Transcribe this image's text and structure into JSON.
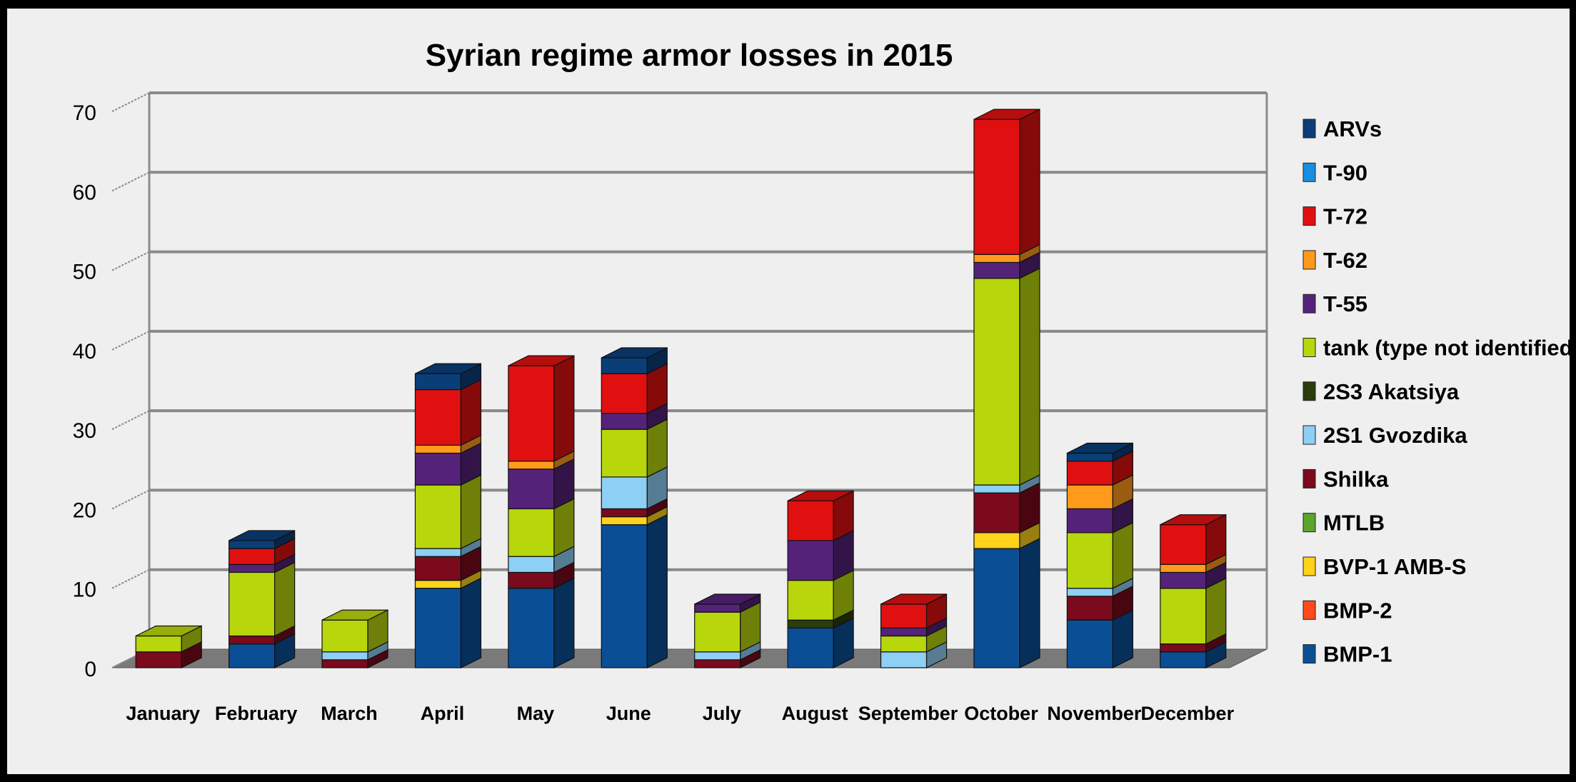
{
  "chart_data": {
    "type": "bar",
    "stacked": true,
    "three_d": true,
    "title": "Syrian regime armor losses in 2015",
    "xlabel": "",
    "ylabel": "",
    "ylim": [
      0,
      70
    ],
    "yticks": [
      "0",
      "10",
      "20",
      "30",
      "40",
      "50",
      "60",
      "70"
    ],
    "grid": true,
    "legend_position": "right",
    "categories": [
      "January",
      "February",
      "March",
      "April",
      "May",
      "June",
      "July",
      "August",
      "September",
      "October",
      "November",
      "December"
    ],
    "series": [
      {
        "name": "BMP-1",
        "color": "#0a4f96",
        "values": [
          0,
          3,
          0,
          10,
          10,
          18,
          0,
          5,
          0,
          15,
          6,
          2
        ]
      },
      {
        "name": "BMP-2",
        "color": "#ff4a1c",
        "values": [
          0,
          0,
          0,
          0,
          0,
          0,
          0,
          0,
          0,
          0,
          0,
          0
        ]
      },
      {
        "name": "BVP-1 AMB-S",
        "color": "#ffd21c",
        "values": [
          0,
          0,
          0,
          1,
          0,
          1,
          0,
          0,
          0,
          2,
          0,
          0
        ]
      },
      {
        "name": "MTLB",
        "color": "#5ba52c",
        "values": [
          0,
          0,
          0,
          0,
          0,
          0,
          0,
          0,
          0,
          0,
          0,
          0
        ]
      },
      {
        "name": "Shilka",
        "color": "#7a0a1c",
        "values": [
          2,
          1,
          1,
          3,
          2,
          1,
          1,
          0,
          0,
          5,
          3,
          1
        ]
      },
      {
        "name": "2S1 Gvozdika",
        "color": "#8ecff5",
        "values": [
          0,
          0,
          1,
          1,
          2,
          4,
          1,
          0,
          2,
          1,
          1,
          0
        ]
      },
      {
        "name": "2S3 Akatsiya",
        "color": "#2b3d0a",
        "values": [
          0,
          0,
          0,
          0,
          0,
          0,
          0,
          1,
          0,
          0,
          0,
          0
        ]
      },
      {
        "name": "tank (type not identified)",
        "color": "#b7d60c",
        "values": [
          2,
          8,
          4,
          8,
          6,
          6,
          5,
          5,
          2,
          26,
          7,
          7
        ]
      },
      {
        "name": "T-55",
        "color": "#55227a",
        "values": [
          0,
          1,
          0,
          4,
          5,
          2,
          1,
          5,
          1,
          2,
          3,
          2
        ]
      },
      {
        "name": "T-62",
        "color": "#ff9a1c",
        "values": [
          0,
          0,
          0,
          1,
          1,
          0,
          0,
          0,
          0,
          1,
          3,
          1
        ]
      },
      {
        "name": "T-72",
        "color": "#e01010",
        "values": [
          0,
          2,
          0,
          7,
          12,
          5,
          0,
          5,
          3,
          17,
          3,
          5
        ]
      },
      {
        "name": "T-90",
        "color": "#1a8ee0",
        "values": [
          0,
          0,
          0,
          0,
          0,
          0,
          0,
          0,
          0,
          0,
          0,
          0
        ]
      },
      {
        "name": "ARVs",
        "color": "#0a3e78",
        "values": [
          0,
          1,
          0,
          2,
          0,
          2,
          0,
          0,
          0,
          0,
          1,
          0
        ]
      }
    ]
  },
  "legend_order": [
    "ARVs",
    "T-90",
    "T-72",
    "T-62",
    "T-55",
    "tank (type not identified)",
    "2S3 Akatsiya",
    "2S1 Gvozdika",
    "Shilka",
    "MTLB",
    "BVP-1 AMB-S",
    "BMP-2",
    "BMP-1"
  ]
}
